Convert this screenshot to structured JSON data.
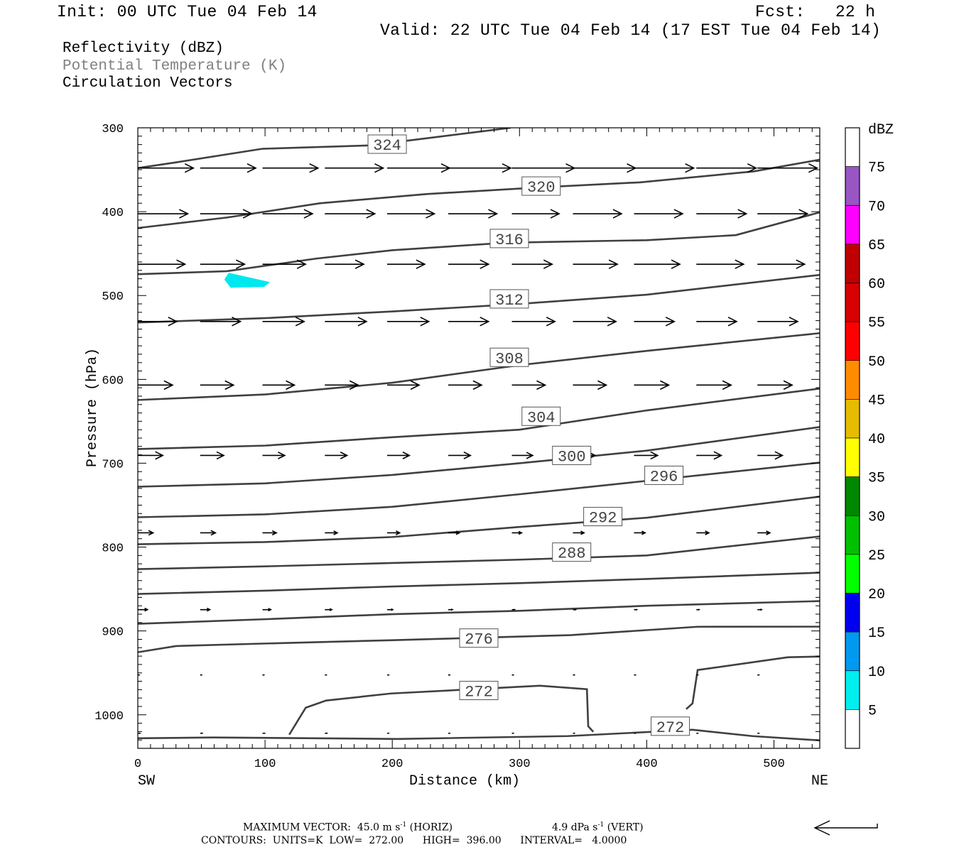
{
  "header": {
    "init": "Init: 00 UTC Tue 04 Feb 14",
    "fcst": "Fcst:   22 h",
    "valid": "Valid: 22 UTC Tue 04 Feb 14 (17 EST Tue 04 Feb 14)"
  },
  "legend": {
    "field1": "Reflectivity (dBZ)",
    "field2": "Potential Temperature (K)",
    "field3": "Circulation Vectors"
  },
  "footer": {
    "max_vector_label": "MAXIMUM VECTOR:",
    "horiz_value": "45.0 m s",
    "horiz_exp": "-1",
    "horiz_tag": "(HORIZ)",
    "vert_value": "4.9 dPa s",
    "vert_exp": "-1",
    "vert_tag": "(VERT)",
    "contours": "CONTOURS:  UNITS=K  LOW=  272.00      HIGH=  396.00      INTERVAL=   4.0000"
  },
  "colors": {
    "contour": "#404040",
    "vector": "#000000",
    "axis": "#000000"
  },
  "chart_data": {
    "type": "cross-section",
    "xlabel": "Distance (km)",
    "ylabel": "Pressure (hPa)",
    "x_left_label": "SW",
    "x_right_label": "NE",
    "xlim": [
      0,
      536
    ],
    "ylim": [
      300,
      1040
    ],
    "y_inverted": true,
    "xticks": [
      0,
      100,
      200,
      300,
      400,
      500
    ],
    "xtick_labels": [
      "0",
      "100",
      "200",
      "300",
      "400",
      "500"
    ],
    "yticks": [
      300,
      400,
      500,
      600,
      700,
      800,
      900,
      1000
    ],
    "ytick_labels": [
      "300",
      "400",
      "500",
      "600",
      "700",
      "800",
      "900",
      "1000"
    ],
    "contours": [
      {
        "level": 324,
        "points": [
          [
            0,
            348
          ],
          [
            31,
            341
          ],
          [
            98,
            325
          ],
          [
            182,
            321
          ],
          [
            293,
            300
          ]
        ]
      },
      {
        "level": 320,
        "points": [
          [
            0,
            419.5
          ],
          [
            70,
            407
          ],
          [
            143,
            390
          ],
          [
            227,
            379
          ],
          [
            317,
            371
          ],
          [
            395,
            365
          ],
          [
            484,
            352
          ],
          [
            536,
            338
          ]
        ]
      },
      {
        "level": 316,
        "points": [
          [
            0,
            474.6
          ],
          [
            70,
            471
          ],
          [
            140,
            456
          ],
          [
            200,
            446
          ],
          [
            290,
            437
          ],
          [
            400,
            434
          ],
          [
            470,
            428
          ],
          [
            536,
            400.8
          ]
        ]
      },
      {
        "level": 312,
        "points": [
          [
            0,
            532.2
          ],
          [
            100,
            527
          ],
          [
            200,
            519
          ],
          [
            300,
            510
          ],
          [
            400,
            499
          ],
          [
            536,
            475.4
          ]
        ]
      },
      {
        "level": 308,
        "points": [
          [
            0,
            624.6
          ],
          [
            100,
            618
          ],
          [
            200,
            604
          ],
          [
            300,
            583
          ],
          [
            400,
            566
          ],
          [
            536,
            544.9
          ]
        ]
      },
      {
        "level": 304,
        "points": [
          [
            0,
            683.1
          ],
          [
            100,
            679
          ],
          [
            200,
            669
          ],
          [
            300,
            660
          ],
          [
            400,
            637
          ],
          [
            536,
            611
          ]
        ]
      },
      {
        "level": 300,
        "points": [
          [
            0,
            728
          ],
          [
            100,
            724
          ],
          [
            200,
            714
          ],
          [
            300,
            700
          ],
          [
            400,
            685
          ],
          [
            536,
            656.8
          ]
        ]
      },
      {
        "level": 296,
        "points": [
          [
            0,
            764.4
          ],
          [
            100,
            761
          ],
          [
            200,
            752
          ],
          [
            300,
            737
          ],
          [
            400,
            721
          ],
          [
            536,
            699.2
          ]
        ]
      },
      {
        "level": 292,
        "points": [
          [
            0,
            796.6
          ],
          [
            100,
            794
          ],
          [
            200,
            788
          ],
          [
            300,
            776
          ],
          [
            400,
            765
          ],
          [
            536,
            739.8
          ]
        ]
      },
      {
        "level": 288,
        "points": [
          [
            0,
            826.3
          ],
          [
            100,
            823
          ],
          [
            200,
            819
          ],
          [
            300,
            815
          ],
          [
            400,
            810
          ],
          [
            536,
            787.3
          ]
        ]
      },
      {
        "level": 284,
        "points": [
          [
            0,
            855.9
          ],
          [
            100,
            852
          ],
          [
            200,
            847
          ],
          [
            300,
            843
          ],
          [
            400,
            838
          ],
          [
            536,
            830.5
          ]
        ]
      },
      {
        "level": 280,
        "points": [
          [
            0,
            891.5
          ],
          [
            100,
            886
          ],
          [
            200,
            880
          ],
          [
            300,
            876
          ],
          [
            400,
            870
          ],
          [
            536,
            864.4
          ]
        ]
      },
      {
        "level": 276,
        "points": [
          [
            0,
            925.4
          ],
          [
            30,
            918
          ],
          [
            100,
            915
          ],
          [
            200,
            911
          ],
          [
            340,
            905
          ],
          [
            440,
            895
          ],
          [
            536,
            894.9
          ]
        ]
      },
      {
        "level": 272,
        "points": [
          [
            0,
            1028
          ],
          [
            59,
            1027
          ],
          [
            204,
            1028.8
          ],
          [
            338,
            1025.4
          ],
          [
            436,
            1017.8
          ],
          [
            483,
            1025.4
          ],
          [
            536,
            1030.5
          ]
        ]
      },
      {
        "level": 272,
        "points": [
          [
            119,
            1023.7
          ],
          [
            132,
            991.5
          ],
          [
            148,
            983
          ],
          [
            199,
            974.6
          ],
          [
            316,
            965.3
          ],
          [
            353,
            969.5
          ],
          [
            354,
            1013.6
          ],
          [
            358,
            1020.3
          ]
        ]
      },
      {
        "level": 272,
        "points": [
          [
            431,
            993.2
          ],
          [
            436,
            986.4
          ],
          [
            440,
            946.6
          ],
          [
            511,
            931.4
          ],
          [
            536,
            930.5
          ]
        ]
      }
    ],
    "contour_labels": [
      {
        "text": "324",
        "x": 196,
        "y": 319.5
      },
      {
        "text": "320",
        "x": 317,
        "y": 369.5
      },
      {
        "text": "316",
        "x": 292,
        "y": 432
      },
      {
        "text": "312",
        "x": 292,
        "y": 504
      },
      {
        "text": "308",
        "x": 292,
        "y": 573.7
      },
      {
        "text": "304",
        "x": 317,
        "y": 644
      },
      {
        "text": "300",
        "x": 341,
        "y": 690.7
      },
      {
        "text": "296",
        "x": 413.5,
        "y": 714.4
      },
      {
        "text": "292",
        "x": 365.5,
        "y": 763.6
      },
      {
        "text": "288",
        "x": 341,
        "y": 806
      },
      {
        "text": "276",
        "x": 268,
        "y": 908.5
      },
      {
        "text": "272",
        "x": 268,
        "y": 971
      },
      {
        "text": "272",
        "x": 418.5,
        "y": 1013.6
      }
    ],
    "vectors": {
      "units": "m s-1",
      "max_horizontal": 45.0,
      "x": [
        0,
        49,
        98,
        147,
        196,
        244,
        294,
        342,
        390,
        439,
        487
      ],
      "rows": [
        {
          "p": 348,
          "u": [
            40,
            40,
            40,
            42,
            45,
            45,
            45,
            45,
            43,
            43,
            43
          ]
        },
        {
          "p": 402.5,
          "u": [
            36,
            37,
            36,
            36,
            34,
            35,
            34,
            35,
            35,
            36,
            36
          ]
        },
        {
          "p": 462.7,
          "u": [
            34,
            32,
            31,
            28,
            27,
            29,
            29,
            32,
            33,
            34,
            34
          ]
        },
        {
          "p": 531,
          "u": [
            28,
            29,
            30,
            30,
            30,
            29,
            31,
            31,
            29,
            29,
            29
          ]
        },
        {
          "p": 606.8,
          "u": [
            25,
            24,
            23,
            24,
            23,
            24,
            24,
            24,
            25,
            25,
            25
          ]
        },
        {
          "p": 690.7,
          "u": [
            18,
            17,
            16,
            16,
            16,
            16,
            15,
            16,
            17,
            18,
            18
          ]
        },
        {
          "p": 783,
          "u": [
            11,
            11,
            10,
            9,
            9,
            8,
            7,
            8,
            8,
            9,
            9
          ]
        },
        {
          "p": 874.6,
          "u": [
            7,
            7,
            6,
            5,
            4,
            3,
            2,
            2,
            2,
            2,
            3
          ]
        },
        {
          "p": 952.5,
          "u": [
            1,
            1,
            1,
            1,
            1,
            1,
            1,
            1,
            1,
            1,
            1
          ]
        },
        {
          "p": 1022,
          "u": [
            1.5,
            1.5,
            1.5,
            1.5,
            1,
            1,
            1,
            1,
            1,
            1,
            1
          ]
        }
      ]
    },
    "reflectivity_areas": [
      {
        "range": "5-10",
        "color": "#00e8ef",
        "points": [
          [
            68,
            481
          ],
          [
            71.4,
            472.9
          ],
          [
            103.8,
            483.9
          ],
          [
            99.3,
            489.8
          ],
          [
            73,
            490.7
          ]
        ]
      }
    ],
    "colorbar": {
      "title": "dBZ",
      "levels": [
        "75",
        "70",
        "65",
        "60",
        "55",
        "50",
        "45",
        "40",
        "35",
        "30",
        "25",
        "20",
        "15",
        "10",
        "5"
      ],
      "colors_top_to_bottom": [
        "#ffffff",
        "#9955c4",
        "#ff00ff",
        "#c00000",
        "#d80000",
        "#ff0000",
        "#ff8c00",
        "#e6bc00",
        "#ffff00",
        "#008800",
        "#00c000",
        "#00ff00",
        "#0000f0",
        "#0099f0",
        "#00eeee",
        "#ffffff"
      ]
    }
  }
}
